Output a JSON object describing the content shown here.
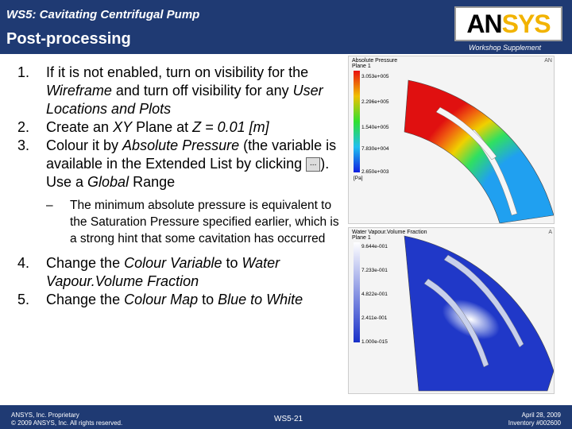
{
  "header": {
    "subtitle": "WS5: Cavitating Centrifugal Pump",
    "title": "Post-processing",
    "supplement": "Workshop Supplement",
    "logo_text_a": "AN",
    "logo_text_b": "SYS"
  },
  "steps": [
    {
      "num": "1.",
      "parts": [
        {
          "t": "If it is not enabled, turn on visibility for the ",
          "i": false
        },
        {
          "t": "Wireframe",
          "i": true
        },
        {
          "t": " and turn off visibility for any ",
          "i": false
        },
        {
          "t": "User Locations and Plots",
          "i": true
        }
      ]
    },
    {
      "num": "2.",
      "parts": [
        {
          "t": "Create an ",
          "i": false
        },
        {
          "t": "XY",
          "i": true
        },
        {
          "t": " Plane at ",
          "i": false
        },
        {
          "t": "Z = 0.01 [m]",
          "i": true
        }
      ]
    },
    {
      "num": "3.",
      "parts": [
        {
          "t": "Colour it by ",
          "i": false
        },
        {
          "t": "Absolute Pressure",
          "i": true
        },
        {
          "t": " (the variable is available in the Extended List by clicking ",
          "i": false
        },
        {
          "t": "__BTN__",
          "i": false
        },
        {
          "t": "). Use a ",
          "i": false
        },
        {
          "t": "Global",
          "i": true
        },
        {
          "t": " Range",
          "i": false
        }
      ]
    }
  ],
  "ellipsis_label": "...",
  "substep": {
    "dash": "–",
    "text": "The minimum absolute pressure is equivalent to the Saturation Pressure specified earlier, which is a strong hint that some cavitation has occurred"
  },
  "steps2": [
    {
      "num": "4.",
      "parts": [
        {
          "t": "Change the ",
          "i": false
        },
        {
          "t": "Colour Variable",
          "i": true
        },
        {
          "t": " to ",
          "i": false
        },
        {
          "t": "Water Vapour.Volume Fraction",
          "i": true
        }
      ]
    },
    {
      "num": "5.",
      "parts": [
        {
          "t": "Change the ",
          "i": false
        },
        {
          "t": "Colour Map",
          "i": true
        },
        {
          "t": " to ",
          "i": false
        },
        {
          "t": "Blue to White",
          "i": true
        }
      ]
    }
  ],
  "panel1": {
    "title": "Absolute Pressure",
    "subtitle": "Plane 1",
    "labels": [
      "3.053e+005",
      "2.296e+005",
      "1.540e+005",
      "7.830e+004",
      "2.650e+003"
    ],
    "unit": "[Pa]",
    "corner": "AN"
  },
  "panel2": {
    "title": "Water Vapour.Volume Fraction",
    "subtitle": "Plane 1",
    "labels": [
      "9.644e-001",
      "7.233e-001",
      "4.822e-001",
      "2.411e-001",
      "1.000e-015"
    ],
    "corner": "A"
  },
  "footer": {
    "left1": "ANSYS, Inc. Proprietary",
    "left2": "© 2009 ANSYS, Inc. All rights reserved.",
    "mid": "WS5-21",
    "right1": "April 28, 2009",
    "right2": "Inventory #002600"
  },
  "colors": {
    "header": "#1f3a73",
    "logo_accent": "#f2b300"
  }
}
